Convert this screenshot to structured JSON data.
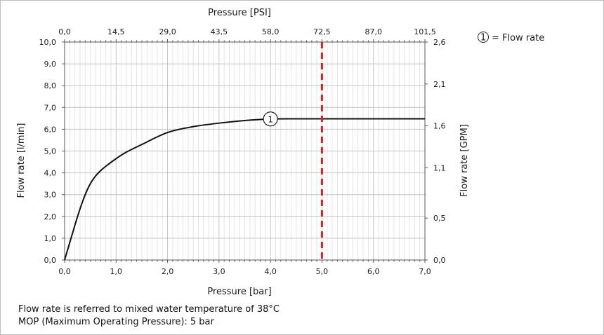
{
  "chart_data": {
    "type": "line",
    "title": "",
    "x_bottom": {
      "label": "Pressure [bar]",
      "range": [
        0,
        7
      ],
      "ticks": [
        "0,0",
        "1,0",
        "2,0",
        "3,0",
        "4,0",
        "5,0",
        "6,0",
        "7,0"
      ]
    },
    "x_top": {
      "label": "Pressure [PSI]",
      "range": [
        0,
        101.5
      ],
      "ticks": [
        "0,0",
        "14,5",
        "29,0",
        "43,5",
        "58,0",
        "72,5",
        "87,0",
        "101,5"
      ]
    },
    "y_left": {
      "label": "Flow rate [l/min]",
      "range": [
        0,
        10
      ],
      "ticks": [
        "0,0",
        "1,0",
        "2,0",
        "3,0",
        "4,0",
        "5,0",
        "6,0",
        "7,0",
        "8,0",
        "9,0",
        "10,0"
      ]
    },
    "y_right": {
      "label": "Flow rate [GPM]",
      "ticks": [
        {
          "value": 0.0,
          "label": "0,0"
        },
        {
          "value": 0.5,
          "label": "0,5"
        },
        {
          "value": 1.1,
          "label": "1,1"
        },
        {
          "value": 1.6,
          "label": "1,6"
        },
        {
          "value": 2.1,
          "label": "2,1"
        },
        {
          "value": 2.6,
          "label": "2,6"
        }
      ]
    },
    "grid": true,
    "series": [
      {
        "name": "Flow rate",
        "marker": "1",
        "marker_at": 4.0,
        "color": "#111111",
        "x": [
          0,
          0.1,
          0.2,
          0.3,
          0.4,
          0.5,
          0.6,
          0.7,
          0.8,
          1.0,
          1.2,
          1.5,
          2.0,
          2.5,
          3.0,
          3.5,
          4.0,
          4.5,
          5.0,
          6.0,
          7.0
        ],
        "y": [
          0,
          0.8,
          1.6,
          2.35,
          3.0,
          3.5,
          3.85,
          4.1,
          4.3,
          4.65,
          4.95,
          5.3,
          5.85,
          6.12,
          6.28,
          6.4,
          6.47,
          6.48,
          6.48,
          6.48,
          6.48
        ]
      }
    ],
    "reference_line": {
      "x": 5.0,
      "color": "#e02020",
      "style": "dashed"
    },
    "legend": {
      "position": "top-right",
      "marker": "1",
      "text": "= Flow rate"
    }
  },
  "notes": [
    "Flow rate is referred to mixed water temperature of 38°C",
    "MOP (Maximum Operating Pressure): 5 bar"
  ]
}
